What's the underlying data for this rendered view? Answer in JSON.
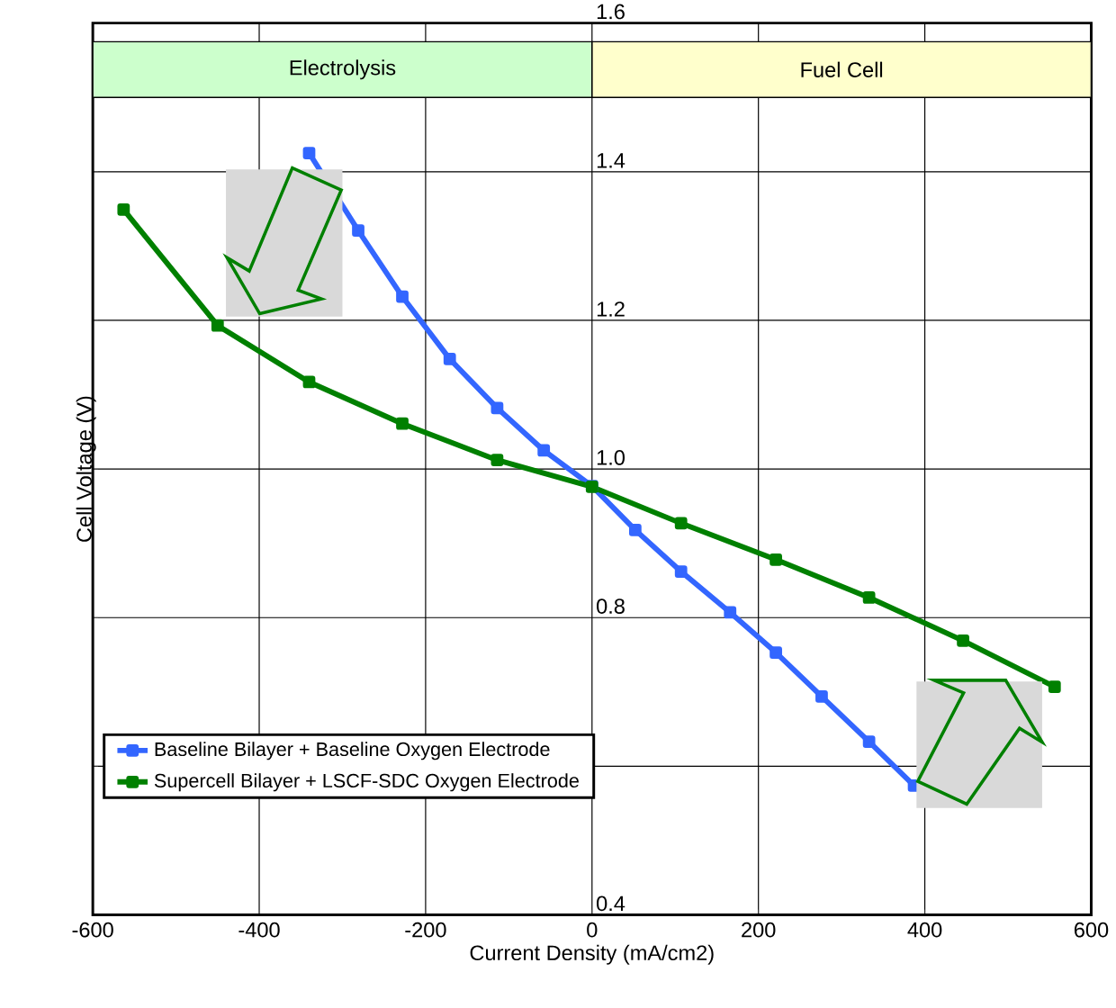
{
  "chart_data": {
    "type": "line",
    "xlabel": "Current Density (mA/cm2)",
    "ylabel": "Cell Voltage (V)",
    "xlim": [
      -600,
      600
    ],
    "xticks": [
      -600,
      -400,
      -200,
      0,
      200,
      400,
      600
    ],
    "ylim": [
      0.4,
      1.6
    ],
    "yticks": [
      0.4,
      {
        "value": 0.6,
        "label": null
      },
      0.8,
      {
        "value": 1.0,
        "label": "1.0"
      },
      1.2,
      1.4,
      1.6
    ],
    "grid": true,
    "legend": "bottom left",
    "marker": "square",
    "line_style": "solid",
    "bands": [
      {
        "axis": "x",
        "from": -600,
        "to": 0,
        "label": "Electrolysis",
        "color": "#ccffcc"
      },
      {
        "axis": "x",
        "from": 0,
        "to": 600,
        "label": "Fuel Cell",
        "color": "#ffffcc"
      }
    ],
    "series": [
      {
        "name": "Baseline Bilayer + Baseline Oxygen Electrode",
        "color": "#3366ff",
        "x": [
          -340,
          -281,
          -228,
          -171,
          -114,
          -58,
          0,
          52,
          107,
          166,
          221,
          276,
          333,
          387
        ],
        "values": [
          1.425,
          1.321,
          1.232,
          1.148,
          1.082,
          1.025,
          0.977,
          0.918,
          0.862,
          0.807,
          0.753,
          0.694,
          0.633,
          0.574
        ]
      },
      {
        "name": "Supercell Bilayer + LSCF-SDC Oxygen Electrode",
        "color": "#008000",
        "x": [
          -563,
          -450,
          -340,
          -228,
          -114,
          0,
          107,
          221,
          333,
          446,
          556
        ],
        "values": [
          1.349,
          1.193,
          1.117,
          1.061,
          1.012,
          0.976,
          0.927,
          0.878,
          0.827,
          0.769,
          0.707
        ]
      }
    ]
  }
}
